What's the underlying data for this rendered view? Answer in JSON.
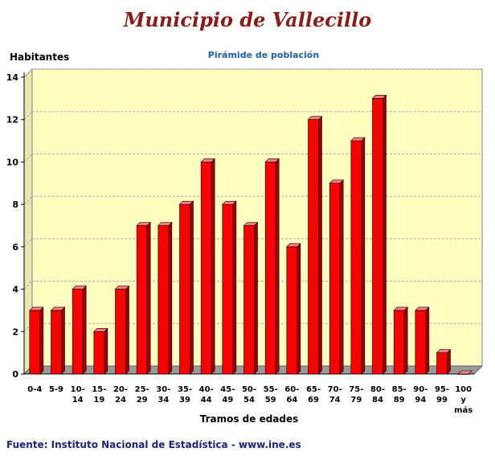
{
  "page": {
    "title": "Municipio de Vallecillo",
    "source": "Fuente: Instituto Nacional de Estadística - www.ine.es"
  },
  "colors": {
    "title": "#8b1a1a",
    "subtitle": "#1f5fa8",
    "source": "#1a237e",
    "plot_background": "#ffffc0",
    "plot_floor": "#9a9a9a",
    "bar_front": "#ff0000",
    "bar_side": "#a00000",
    "bar_top": "#ff7a7a"
  },
  "chart_data": {
    "type": "bar",
    "title": "Pirámide de población",
    "xlabel": "Tramos de edades",
    "ylabel": "Habitantes",
    "ylim": [
      0,
      14
    ],
    "yticks": [
      0,
      2,
      4,
      6,
      8,
      10,
      12,
      14
    ],
    "grid": true,
    "categories": [
      [
        "0-4"
      ],
      [
        "5-9"
      ],
      [
        "10-",
        "14"
      ],
      [
        "15-",
        "19"
      ],
      [
        "20-",
        "24"
      ],
      [
        "25-",
        "29"
      ],
      [
        "30-",
        "34"
      ],
      [
        "35-",
        "39"
      ],
      [
        "40-",
        "44"
      ],
      [
        "45-",
        "49"
      ],
      [
        "50-",
        "54"
      ],
      [
        "55-",
        "59"
      ],
      [
        "60-",
        "64"
      ],
      [
        "65-",
        "69"
      ],
      [
        "70-",
        "74"
      ],
      [
        "75-",
        "79"
      ],
      [
        "80-",
        "84"
      ],
      [
        "85-",
        "89"
      ],
      [
        "90-",
        "94"
      ],
      [
        "95-",
        "99"
      ],
      [
        "100",
        "y",
        "más"
      ]
    ],
    "values": [
      3,
      3,
      4,
      2,
      4,
      7,
      7,
      8,
      10,
      8,
      7,
      10,
      6,
      12,
      9,
      11,
      13,
      3,
      3,
      1,
      0
    ]
  }
}
